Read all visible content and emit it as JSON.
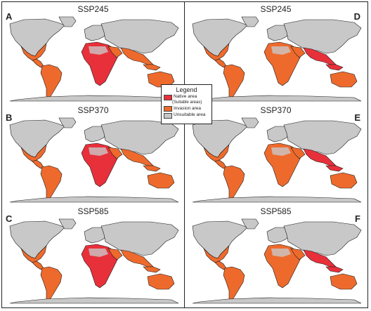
{
  "colors": {
    "native": "#e8303a",
    "invasion": "#ee6a2c",
    "unsuitable": "#c8c8c8",
    "outline": "#1a1a1a"
  },
  "legend": {
    "title": "Legend",
    "items": [
      {
        "label": "Native area",
        "note": "(Suitable areas)",
        "color_key": "native"
      },
      {
        "label": "Invasion area",
        "note": "",
        "color_key": "invasion"
      },
      {
        "label": "Unsuitable area",
        "note": "",
        "color_key": "unsuitable"
      }
    ]
  },
  "panels": [
    {
      "letter": "A",
      "title": "SSP245",
      "focus": "invasion"
    },
    {
      "letter": "D",
      "title": "SSP245",
      "focus": "native"
    },
    {
      "letter": "B",
      "title": "SSP370",
      "focus": "invasion"
    },
    {
      "letter": "E",
      "title": "SSP370",
      "focus": "native"
    },
    {
      "letter": "C",
      "title": "SSP585",
      "focus": "invasion"
    },
    {
      "letter": "F",
      "title": "SSP585",
      "focus": "native"
    }
  ]
}
